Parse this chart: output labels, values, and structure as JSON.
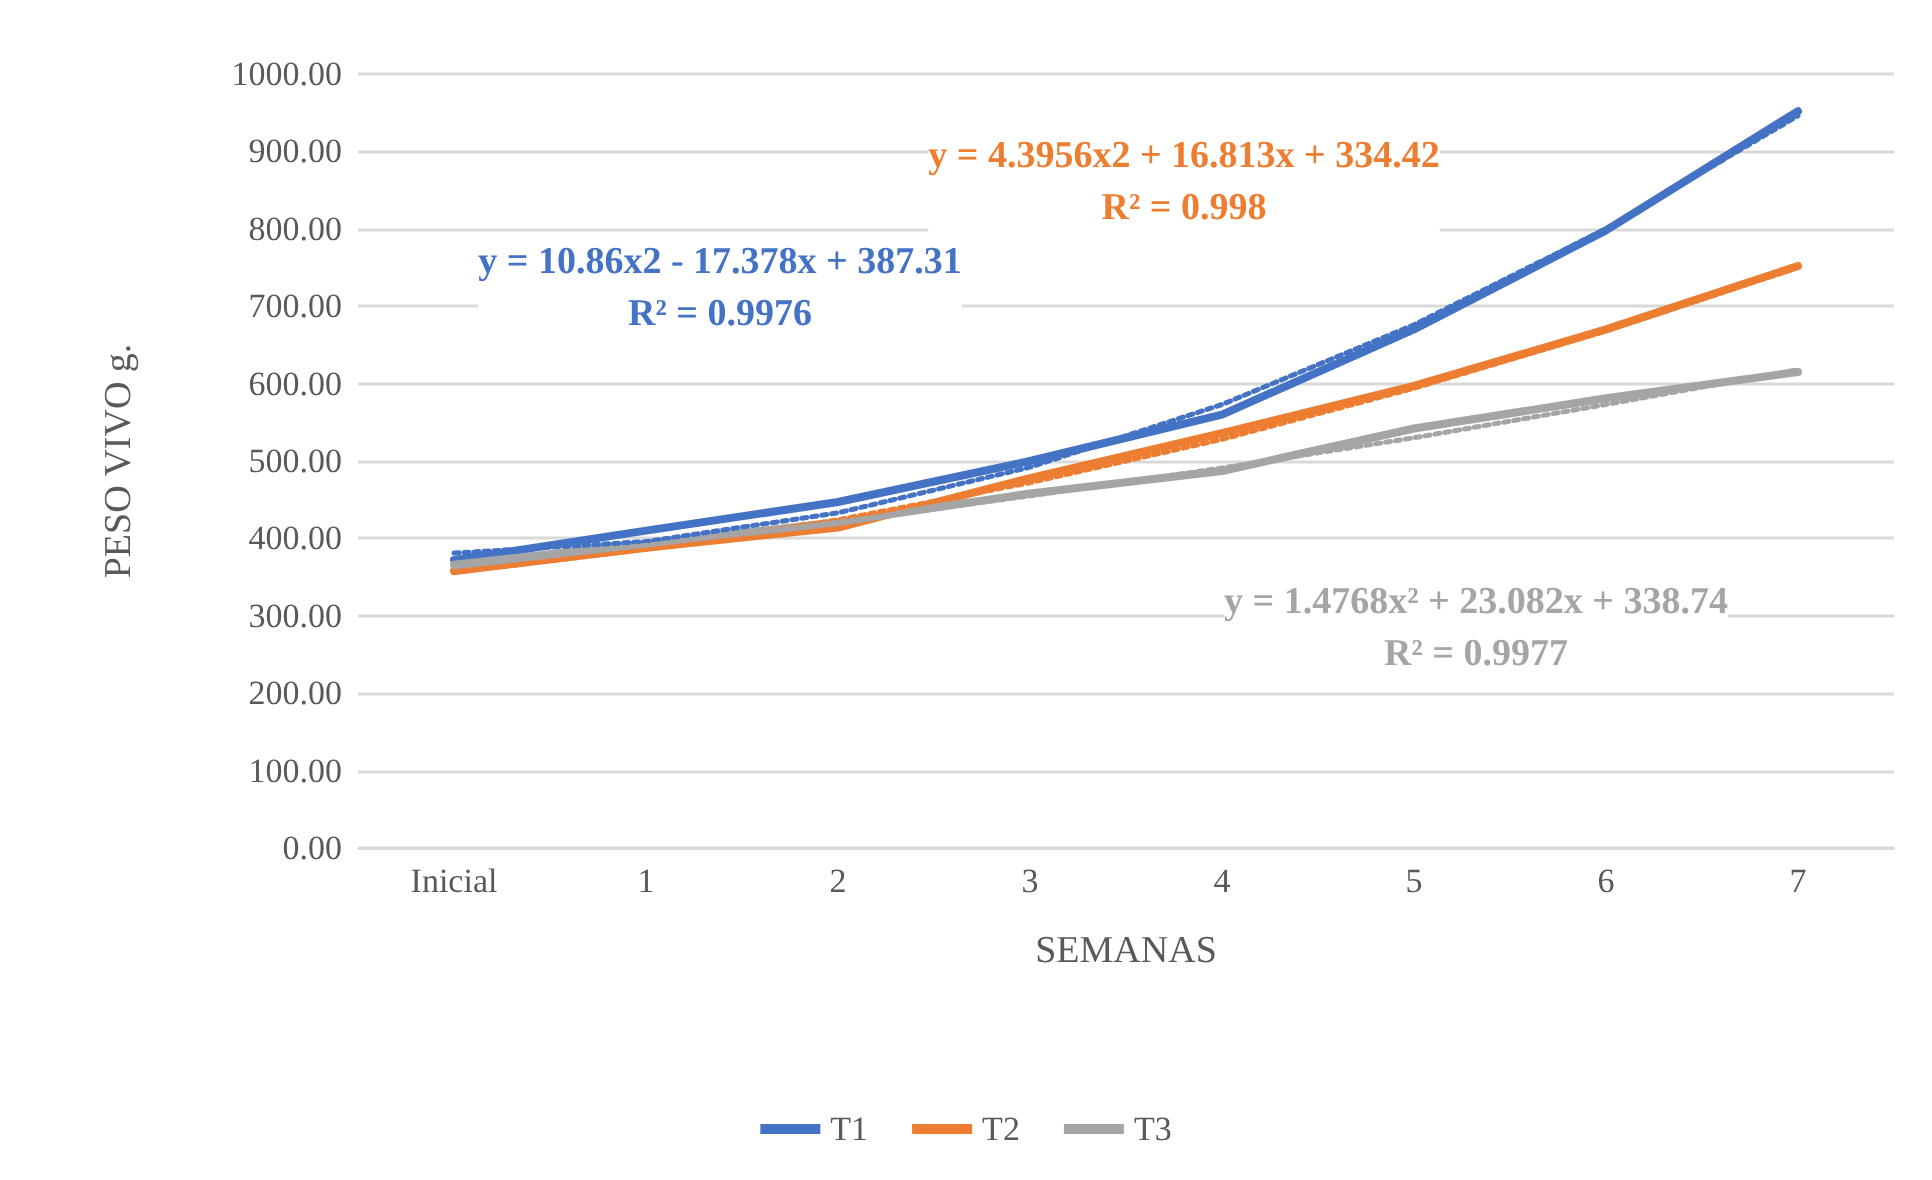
{
  "chart_data": {
    "type": "line",
    "xlabel": "SEMANAS",
    "ylabel": "PESO VIVO g.",
    "categories": [
      "Inicial",
      "1",
      "2",
      "3",
      "4",
      "5",
      "6",
      "7"
    ],
    "series": [
      {
        "name": "T1",
        "color": "#4472c4",
        "values": [
          372,
          410,
          447,
          500,
          560,
          670,
          798,
          952
        ]
      },
      {
        "name": "T2",
        "color": "#ed7d31",
        "values": [
          358,
          388,
          414,
          478,
          536,
          597,
          670,
          752
        ]
      },
      {
        "name": "T3",
        "color": "#a5a5a5",
        "values": [
          366,
          393,
          421,
          458,
          487,
          542,
          581,
          615
        ]
      },
      {
        "type": "line",
        "color": "#4472c4",
        "line_style": "dotted",
        "values": [
          381,
          396,
          433,
          492,
          573,
          676,
          800,
          946
        ]
      },
      {
        "type": "line",
        "color": "#ed7d31",
        "line_style": "dotted",
        "values": [
          356,
          386,
          424,
          472,
          528,
          594,
          668,
          750
        ]
      },
      {
        "type": "line",
        "color": "#a5a5a5",
        "line_style": "dotted",
        "values": [
          363,
          391,
          421,
          455,
          491,
          530,
          573,
          618
        ]
      }
    ],
    "annotations": [
      "y = 10.86x2 - 17.378x + 387.31\nR² = 0.9976",
      "y = 4.3956x2 + 16.813x + 334.42\nR² = 0.998",
      "y = 1.4768x² + 23.082x + 338.74\nR² = 0.9977"
    ],
    "ylim": [
      0,
      1000
    ],
    "yticks": [
      {
        "value": 0,
        "label": "0.00"
      },
      {
        "value": 100,
        "label": "100.00"
      },
      {
        "value": 200,
        "label": "200.00"
      },
      {
        "value": 300,
        "label": "300.00"
      },
      {
        "value": 400,
        "label": "400.00"
      },
      {
        "value": 500,
        "label": "500.00"
      },
      {
        "value": 600,
        "label": "600.00"
      },
      {
        "value": 700,
        "label": "700.00"
      },
      {
        "value": 800,
        "label": "800.00"
      },
      {
        "value": 900,
        "label": "900.00"
      },
      {
        "value": 1000,
        "label": "1000.00"
      }
    ],
    "grid": "y",
    "legend": "bottom",
    "marker": "none",
    "line_style": "solid"
  }
}
